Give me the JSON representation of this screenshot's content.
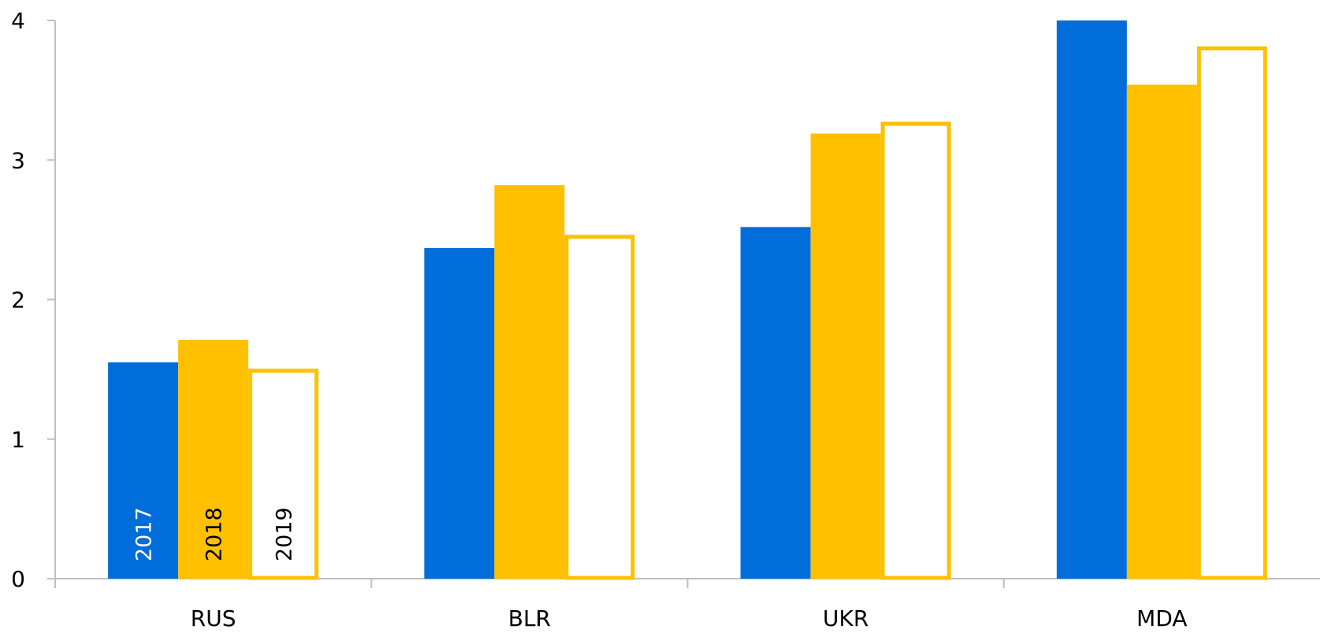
{
  "chart_data": {
    "type": "bar",
    "title": "",
    "xlabel": "",
    "ylabel": "",
    "categories": [
      "RUS",
      "BLR",
      "UKR",
      "MDA"
    ],
    "series": [
      {
        "name": "2017",
        "values": [
          1.55,
          2.37,
          2.52,
          4.0
        ],
        "color": "#006DDB",
        "style": "filled"
      },
      {
        "name": "2018",
        "values": [
          1.71,
          2.82,
          3.19,
          3.54
        ],
        "color": "#FFC000",
        "style": "filled"
      },
      {
        "name": "2019",
        "values": [
          1.49,
          2.45,
          3.26,
          3.8
        ],
        "color": "#FFC000",
        "style": "outline"
      }
    ],
    "ylim": [
      0,
      4
    ],
    "yticks": [
      0,
      1,
      2,
      3,
      4
    ],
    "ytick_labels": [
      "0",
      "1",
      "2",
      "3",
      "4"
    ],
    "grid": false,
    "legend": "series names written vertically inside the bars of the first category",
    "colors": {
      "axis": "#BFBFBF",
      "text": "#000000",
      "label_on_blue": "#FFFFFF"
    }
  }
}
